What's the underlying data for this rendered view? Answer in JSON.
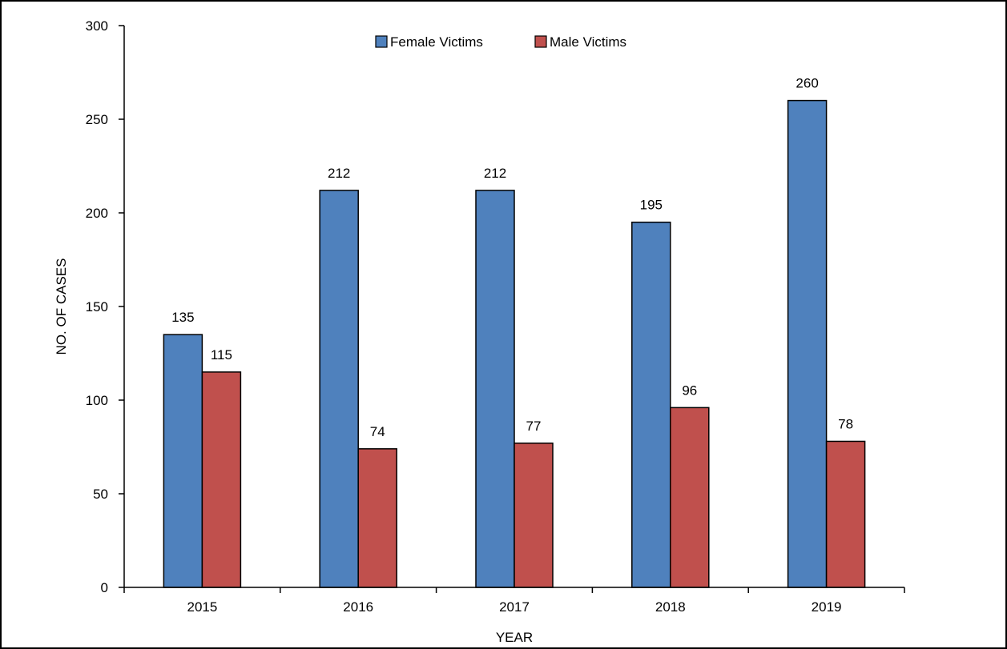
{
  "chart_data": {
    "type": "bar",
    "title": "",
    "xlabel": "YEAR",
    "ylabel": "NO. OF CASES",
    "categories": [
      "2015",
      "2016",
      "2017",
      "2018",
      "2019"
    ],
    "series": [
      {
        "name": "Female Victims",
        "color": "#4f81bd",
        "values": [
          135,
          212,
          212,
          195,
          260
        ]
      },
      {
        "name": "Male Victims",
        "color": "#c0504d",
        "values": [
          115,
          74,
          77,
          96,
          78
        ]
      }
    ],
    "ylim": [
      0,
      300
    ],
    "yticks": [
      0,
      50,
      100,
      150,
      200,
      250,
      300
    ],
    "grid": false,
    "legend": "top-center",
    "data_labels": true
  }
}
